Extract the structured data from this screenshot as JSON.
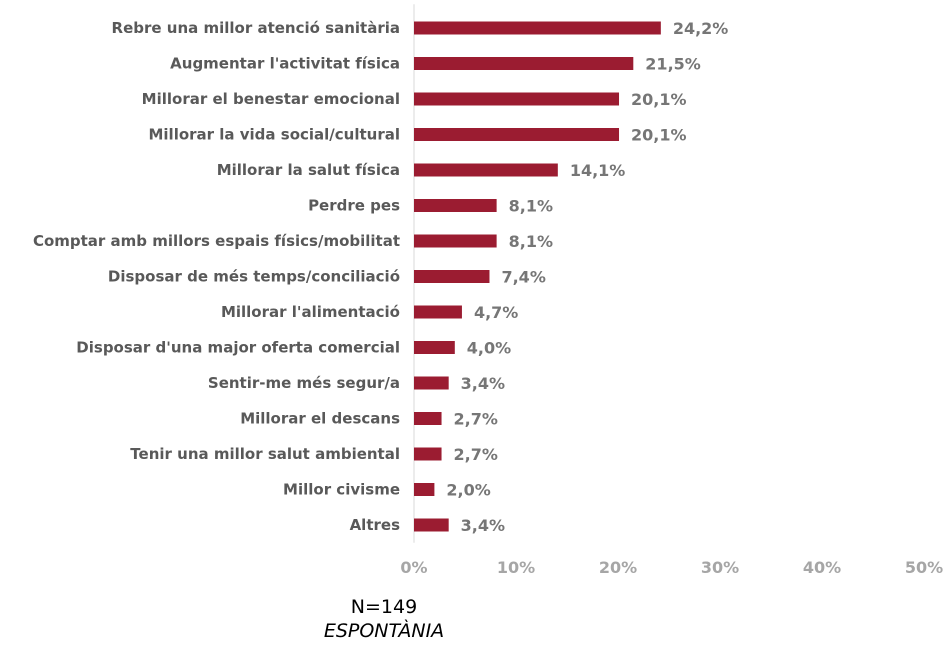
{
  "chart_data": {
    "type": "bar",
    "orientation": "horizontal",
    "categories": [
      "Rebre una millor atenció sanitària",
      "Augmentar l'activitat física",
      "Millorar el benestar emocional",
      "Millorar la vida social/cultural",
      "Millorar la salut física",
      "Perdre pes",
      "Comptar amb millors espais físics/mobilitat",
      "Disposar de més temps/conciliació",
      "Millorar l'alimentació",
      "Disposar d'una major oferta comercial",
      "Sentir-me més segur/a",
      "Millorar el descans",
      "Tenir una millor salut ambiental",
      "Millor civisme",
      "Altres"
    ],
    "values": [
      24.2,
      21.5,
      20.1,
      20.1,
      14.1,
      8.1,
      8.1,
      7.4,
      4.7,
      4.0,
      3.4,
      2.7,
      2.7,
      2.0,
      3.4
    ],
    "value_labels": [
      "24,2%",
      "21,5%",
      "20,1%",
      "20,1%",
      "14,1%",
      "8,1%",
      "8,1%",
      "7,4%",
      "4,7%",
      "4,0%",
      "3,4%",
      "2,7%",
      "2,7%",
      "2,0%",
      "3,4%"
    ],
    "xlim": [
      0,
      50
    ],
    "x_ticks": [
      0,
      10,
      20,
      30,
      40,
      50
    ],
    "x_tick_labels": [
      "0%",
      "10%",
      "20%",
      "30%",
      "40%",
      "50%"
    ],
    "grid": false,
    "legend": "none",
    "bar_color": "#9b1c31"
  },
  "notes": {
    "sample": "N=149",
    "type": "ESPONTÀNIA"
  }
}
